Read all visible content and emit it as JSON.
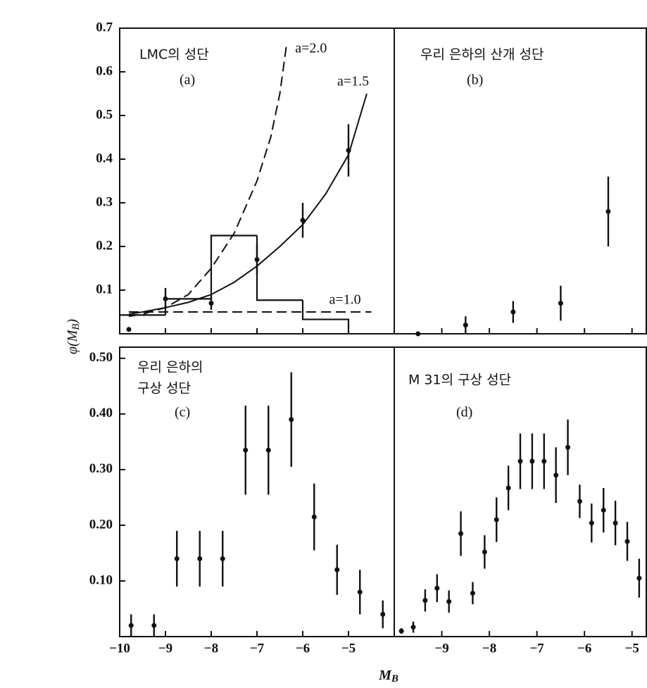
{
  "y_label": [
    "φ(M",
    "B",
    ")"
  ],
  "x_label": [
    "M",
    "B"
  ],
  "chart_data": [
    {
      "type": "scatter",
      "title": "LMC의 성단",
      "panel_label": "(a)",
      "xlim": [
        -10,
        -4
      ],
      "ylim": [
        0,
        0.7
      ],
      "xticks": [
        -10,
        -9,
        -8,
        -7,
        -6,
        -5
      ],
      "yticks": [
        0.7,
        0.6,
        0.5,
        0.4,
        0.3,
        0.2,
        0.1
      ],
      "color": "#111111",
      "x": [
        -9.8,
        -9,
        -8,
        -7,
        -6,
        -5
      ],
      "values": [
        0.01,
        0.08,
        0.07,
        0.17,
        0.26,
        0.42
      ],
      "errors": [
        0,
        0.025,
        0.015,
        0.035,
        0.04,
        0.06
      ],
      "histogram": {
        "bins": [
          -10,
          -9,
          -8,
          -7,
          -6,
          -5
        ],
        "values": [
          0.043,
          0.08,
          0.225,
          0.077,
          0.033
        ]
      },
      "curves": [
        {
          "name": "a=2.0",
          "dashed": true,
          "x": [
            -9.8,
            -9.5,
            -9,
            -8.5,
            -8,
            -7.5,
            -7,
            -6.7,
            -6.5,
            -6.35
          ],
          "values": [
            0.04,
            0.045,
            0.06,
            0.09,
            0.15,
            0.23,
            0.35,
            0.45,
            0.55,
            0.665
          ]
        },
        {
          "name": "a=1.5",
          "dashed": false,
          "x": [
            -9.8,
            -9.5,
            -9,
            -8.5,
            -8,
            -7.5,
            -7,
            -6.5,
            -6,
            -5.5,
            -5,
            -4.6
          ],
          "values": [
            0.045,
            0.05,
            0.06,
            0.072,
            0.09,
            0.118,
            0.155,
            0.2,
            0.25,
            0.32,
            0.41,
            0.55
          ]
        },
        {
          "name": "a=1.0",
          "dashed": true,
          "x": [
            -9.8,
            -4.5
          ],
          "values": [
            0.05,
            0.05
          ]
        }
      ]
    },
    {
      "type": "scatter",
      "title": "우리 은하의 산개 성단",
      "panel_label": "(b)",
      "xlim": [
        -10,
        -4.7
      ],
      "ylim": [
        0,
        0.7
      ],
      "xticks": [
        -9,
        -8,
        -7,
        -6,
        -5
      ],
      "color": "#111111",
      "x": [
        -9.5,
        -8.5,
        -7.5,
        -6.5,
        -5.5
      ],
      "values": [
        0.0,
        0.02,
        0.05,
        0.07,
        0.28
      ],
      "errors": [
        0,
        0.02,
        0.025,
        0.04,
        0.08
      ]
    },
    {
      "type": "scatter",
      "title": [
        "우리 은하의",
        "구상 성단"
      ],
      "panel_label": "(c)",
      "xlim": [
        -10,
        -4
      ],
      "ylim": [
        0,
        0.52
      ],
      "xticks": [
        {
          "value": -10,
          "label": "−10"
        },
        {
          "value": -9,
          "label": "−9"
        },
        {
          "value": -8,
          "label": "−8"
        },
        {
          "value": -7,
          "label": "−7"
        },
        {
          "value": -6,
          "label": "−6"
        },
        {
          "value": -5,
          "label": "−5"
        }
      ],
      "yticks": [
        {
          "value": 0.5,
          "label": "0.50"
        },
        {
          "value": 0.4,
          "label": "0.40"
        },
        {
          "value": 0.3,
          "label": "0.30"
        },
        {
          "value": 0.2,
          "label": "0.20"
        },
        {
          "value": 0.1,
          "label": "0.10"
        }
      ],
      "color": "#111111",
      "x": [
        -9.75,
        -9.25,
        -8.75,
        -8.25,
        -7.75,
        -7.25,
        -6.75,
        -6.25,
        -5.75,
        -5.25,
        -4.75,
        -4.25
      ],
      "values": [
        0.02,
        0.02,
        0.14,
        0.14,
        0.14,
        0.335,
        0.335,
        0.39,
        0.215,
        0.12,
        0.08,
        0.04
      ],
      "errors": [
        0.02,
        0.02,
        0.05,
        0.05,
        0.05,
        0.08,
        0.08,
        0.085,
        0.06,
        0.045,
        0.04,
        0.025
      ]
    },
    {
      "type": "scatter",
      "title": "M 31의 구상 성단",
      "panel_label": "(d)",
      "xlim": [
        -10,
        -4.7
      ],
      "ylim": [
        0,
        0.52
      ],
      "xticks": [
        {
          "value": -9,
          "label": "−9"
        },
        {
          "value": -8,
          "label": "−8"
        },
        {
          "value": -7,
          "label": "−7"
        },
        {
          "value": -6,
          "label": "−6"
        },
        {
          "value": -5,
          "label": "−5"
        }
      ],
      "color": "#111111",
      "x": [
        -9.85,
        -9.6,
        -9.35,
        -9.1,
        -8.85,
        -8.6,
        -8.35,
        -8.1,
        -7.85,
        -7.6,
        -7.35,
        -7.1,
        -6.85,
        -6.6,
        -6.35,
        -6.1,
        -5.85,
        -5.6,
        -5.35,
        -5.1,
        -4.85
      ],
      "values": [
        0.01,
        0.017,
        0.065,
        0.087,
        0.063,
        0.185,
        0.078,
        0.152,
        0.21,
        0.267,
        0.315,
        0.315,
        0.315,
        0.29,
        0.34,
        0.243,
        0.204,
        0.227,
        0.204,
        0.171,
        0.105
      ],
      "errors": [
        0.005,
        0.01,
        0.02,
        0.025,
        0.02,
        0.04,
        0.02,
        0.03,
        0.04,
        0.04,
        0.05,
        0.05,
        0.05,
        0.05,
        0.05,
        0.03,
        0.035,
        0.04,
        0.04,
        0.035,
        0.035
      ]
    }
  ]
}
